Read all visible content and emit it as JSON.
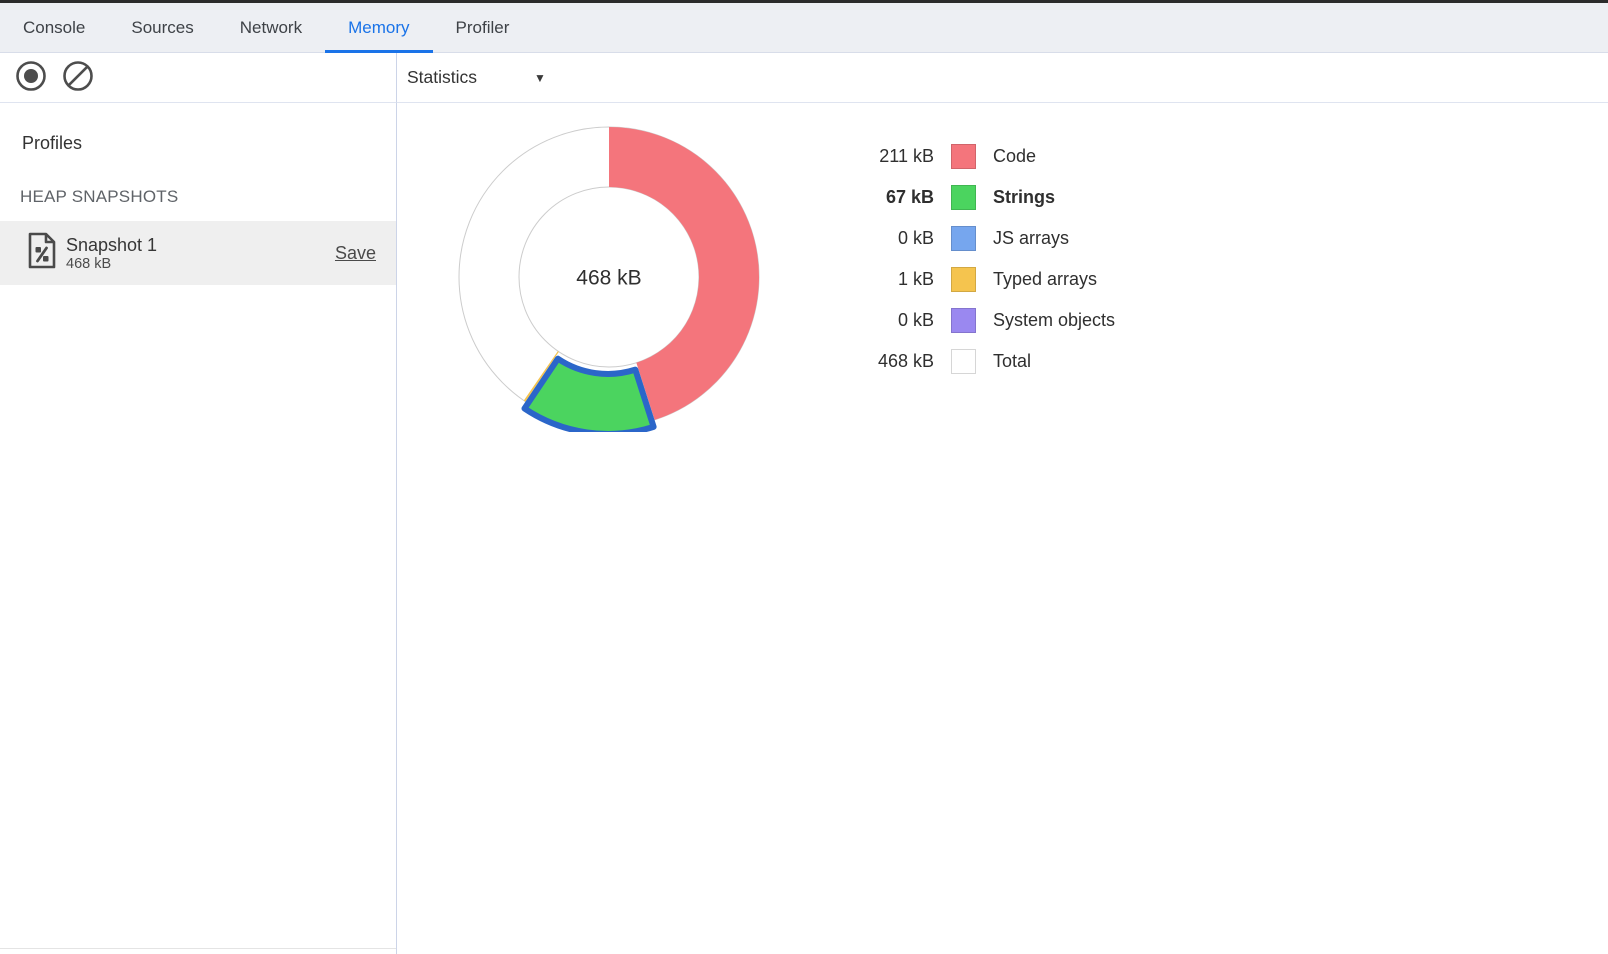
{
  "tab_bar": {
    "tabs": [
      {
        "label": "Console",
        "active": false
      },
      {
        "label": "Sources",
        "active": false
      },
      {
        "label": "Network",
        "active": false
      },
      {
        "label": "Memory",
        "active": true
      },
      {
        "label": "Profiler",
        "active": false
      }
    ],
    "active_color": "#1a73e8"
  },
  "toolbar": {
    "statistics_label": "Statistics",
    "dropdown_arrow_glyph": "▼",
    "icons": [
      "record-icon",
      "clear-icon"
    ]
  },
  "sidebar": {
    "profiles_heading": "Profiles",
    "section_heading": "HEAP SNAPSHOTS",
    "snapshot": {
      "title": "Snapshot 1",
      "size": "468 kB",
      "save_label": "Save",
      "icon": "heap-snapshot-file-icon",
      "selected": true
    }
  },
  "chart_data": {
    "type": "pie",
    "title": "Heap snapshot statistics",
    "center_label": "468 kB",
    "total_kb": 468,
    "legend_position": "right",
    "ring_outline": "#cccccc",
    "selection_stroke": "#2b66c9",
    "selected_segment": "Strings",
    "segments": [
      {
        "label": "Code",
        "value_kb": 211,
        "value_label": "211 kB",
        "color": "#f4757c",
        "selected": false,
        "is_total": false
      },
      {
        "label": "Strings",
        "value_kb": 67,
        "value_label": "67 kB",
        "color": "#4bd45f",
        "selected": true,
        "is_total": false
      },
      {
        "label": "JS arrays",
        "value_kb": 0,
        "value_label": "0 kB",
        "color": "#76a6ee",
        "selected": false,
        "is_total": false
      },
      {
        "label": "Typed arrays",
        "value_kb": 1,
        "value_label": "1 kB",
        "color": "#f5c44e",
        "selected": false,
        "is_total": false
      },
      {
        "label": "System objects",
        "value_kb": 0,
        "value_label": "0 kB",
        "color": "#9a88f0",
        "selected": false,
        "is_total": false
      },
      {
        "label": "Total",
        "value_kb": 468,
        "value_label": "468 kB",
        "color": "#ffffff",
        "selected": false,
        "is_total": true
      }
    ]
  }
}
